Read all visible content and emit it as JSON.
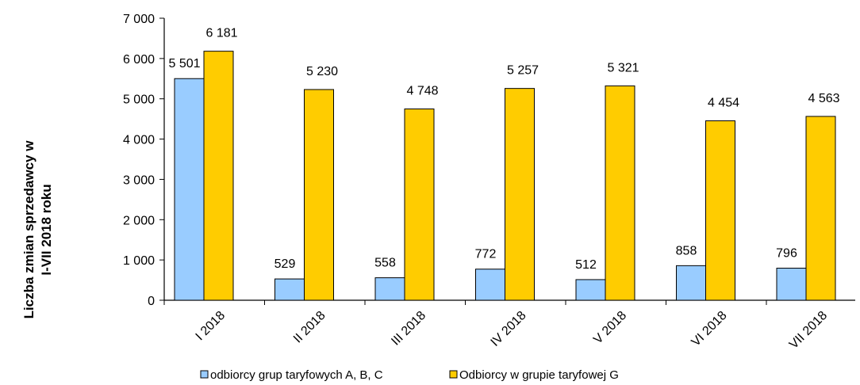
{
  "chart_data": {
    "type": "bar",
    "categories": [
      "I 2018",
      "II 2018",
      "III 2018",
      "IV 2018",
      "V 2018",
      "VI 2018",
      "VII 2018"
    ],
    "series": [
      {
        "name": "odbiorcy grup taryfowych A, B, C",
        "color": "#99ccff",
        "values": [
          5501,
          529,
          558,
          772,
          512,
          858,
          796
        ],
        "labels": [
          "5 501",
          "529",
          "558",
          "772",
          "512",
          "858",
          "796"
        ]
      },
      {
        "name": "Odbiorcy w grupie taryfowej G",
        "color": "#ffcc00",
        "values": [
          6181,
          5230,
          4748,
          5257,
          5321,
          4454,
          4563
        ],
        "labels": [
          "6 181",
          "5 230",
          "4 748",
          "5 257",
          "5 321",
          "4 454",
          "4 563"
        ]
      }
    ],
    "ylabel_lines": [
      "Liczba zmian sprzedawcy w",
      "I-VII  2018 roku"
    ],
    "ylim": [
      0,
      7000
    ],
    "yticks": [
      0,
      1000,
      2000,
      3000,
      4000,
      5000,
      6000,
      7000
    ],
    "ytick_labels": [
      "0",
      "1 000",
      "2 000",
      "3 000",
      "4 000",
      "5 000",
      "6 000",
      "7 000"
    ],
    "grid": false,
    "legend_position": "bottom"
  }
}
